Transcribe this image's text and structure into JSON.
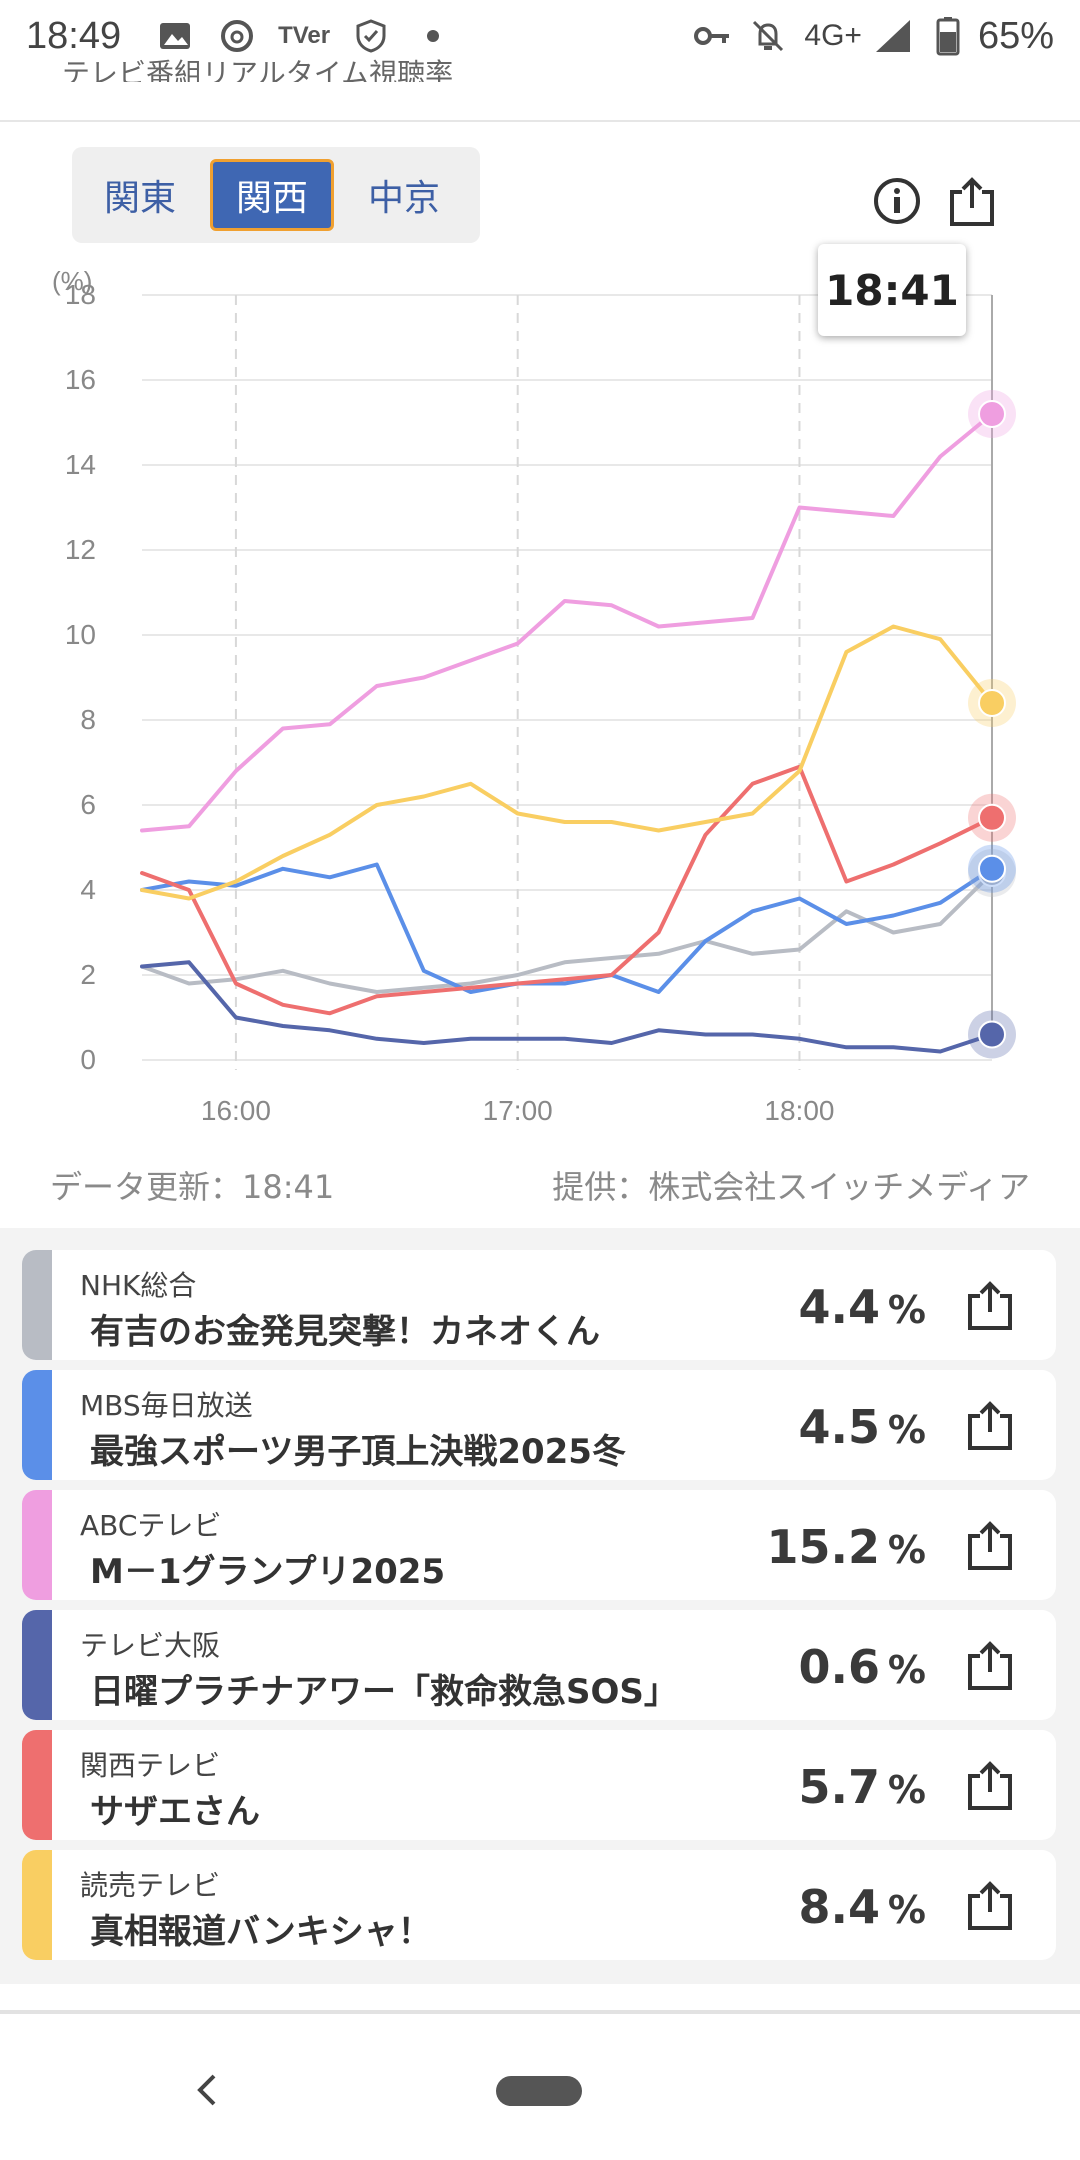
{
  "status_bar": {
    "time": "18:49",
    "network": "4G+",
    "battery": "65%",
    "left_icons": [
      "image-icon",
      "threads-icon",
      "tver-icon",
      "shield-icon",
      "dot-icon"
    ],
    "tver_label": "TVer",
    "right_icons": [
      "key-icon",
      "bell-off-icon",
      "signal-icon",
      "battery-icon"
    ]
  },
  "page": {
    "cut_title": "テレビ番組リアルタイム視聴率"
  },
  "region_tabs": [
    {
      "label": "関東",
      "active": false
    },
    {
      "label": "関西",
      "active": true
    },
    {
      "label": "中京",
      "active": false
    }
  ],
  "chart_data": {
    "type": "line",
    "y_unit_label": "(%)",
    "ylim": [
      0,
      18
    ],
    "y_ticks": [
      "0",
      "2",
      "4",
      "6",
      "8",
      "10",
      "12",
      "14",
      "16",
      "18"
    ],
    "x_tick_labels": [
      "16:00",
      "17:00",
      "18:00"
    ],
    "x_range": [
      "15:40",
      "18:41"
    ],
    "tooltip_time": "18:41",
    "grid": true,
    "x": [
      "15:40",
      "15:50",
      "16:00",
      "16:10",
      "16:20",
      "16:30",
      "16:40",
      "16:50",
      "17:00",
      "17:10",
      "17:20",
      "17:30",
      "17:40",
      "17:50",
      "18:00",
      "18:10",
      "18:20",
      "18:30",
      "18:41"
    ],
    "series": [
      {
        "name": "NHK総合",
        "color": "#b8bcc4",
        "values": [
          2.2,
          1.8,
          1.9,
          2.1,
          1.8,
          1.6,
          1.7,
          1.8,
          2.0,
          2.3,
          2.4,
          2.5,
          2.8,
          2.5,
          2.6,
          3.5,
          3.0,
          3.2,
          4.4
        ]
      },
      {
        "name": "MBS毎日放送",
        "color": "#5b8fe8",
        "values": [
          4.0,
          4.2,
          4.1,
          4.5,
          4.3,
          4.6,
          2.1,
          1.6,
          1.8,
          1.8,
          2.0,
          1.6,
          2.8,
          3.5,
          3.8,
          3.2,
          3.4,
          3.7,
          4.5
        ]
      },
      {
        "name": "ABCテレビ",
        "color": "#ef9ee0",
        "values": [
          5.4,
          5.5,
          6.8,
          7.8,
          7.9,
          8.8,
          9.0,
          9.4,
          9.8,
          10.8,
          10.7,
          10.2,
          10.3,
          10.4,
          13.0,
          12.9,
          12.8,
          14.2,
          15.2
        ]
      },
      {
        "name": "テレビ大阪",
        "color": "#5566aa",
        "values": [
          2.2,
          2.3,
          1.0,
          0.8,
          0.7,
          0.5,
          0.4,
          0.5,
          0.5,
          0.5,
          0.4,
          0.7,
          0.6,
          0.6,
          0.5,
          0.3,
          0.3,
          0.2,
          0.6
        ]
      },
      {
        "name": "関西テレビ",
        "color": "#ee6f6f",
        "values": [
          4.4,
          4.0,
          1.8,
          1.3,
          1.1,
          1.5,
          1.6,
          1.7,
          1.8,
          1.9,
          2.0,
          3.0,
          5.3,
          6.5,
          6.9,
          4.2,
          4.6,
          5.1,
          5.7
        ]
      },
      {
        "name": "読売テレビ",
        "color": "#f9ce62",
        "values": [
          4.0,
          3.8,
          4.2,
          4.8,
          5.3,
          6.0,
          6.2,
          6.5,
          5.8,
          5.6,
          5.6,
          5.4,
          5.6,
          5.8,
          6.8,
          9.6,
          10.2,
          9.9,
          8.4
        ]
      }
    ]
  },
  "update_text": "データ更新：18:41",
  "credit_text": "提供：株式会社スイッチメディア",
  "programs": [
    {
      "channel": "NHK総合",
      "title": "有吉のお金発見突撃！カネオくん",
      "rating": "4.4",
      "unit": "%",
      "color": "#b8bcc4"
    },
    {
      "channel": "MBS毎日放送",
      "title": "最強スポーツ男子頂上決戦2025冬",
      "rating": "4.5",
      "unit": "%",
      "color": "#5b8fe8"
    },
    {
      "channel": "ABCテレビ",
      "title": "M－1グランプリ2025",
      "rating": "15.2",
      "unit": "%",
      "color": "#ef9ee0"
    },
    {
      "channel": "テレビ大阪",
      "title": "日曜プラチナアワー「救命救急SOS」",
      "rating": "0.6",
      "unit": "%",
      "color": "#5566aa"
    },
    {
      "channel": "関西テレビ",
      "title": "サザエさん",
      "rating": "5.7",
      "unit": "%",
      "color": "#ee6f6f"
    },
    {
      "channel": "読売テレビ",
      "title": "真相報道バンキシャ！",
      "rating": "8.4",
      "unit": "%",
      "color": "#f9ce62"
    }
  ],
  "nav": {
    "icons": [
      "back-icon",
      "home-pill-icon"
    ]
  }
}
